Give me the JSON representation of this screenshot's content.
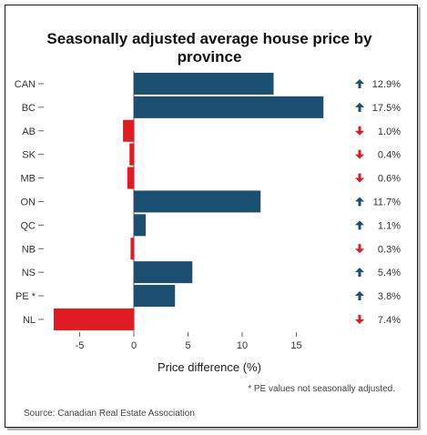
{
  "chart_data": {
    "type": "bar",
    "orientation": "horizontal",
    "title_line1": "Seasonally adjusted average house price by",
    "title_line2": "province",
    "categories": [
      "CAN",
      "BC",
      "AB",
      "SK",
      "MB",
      "ON",
      "QC",
      "NB",
      "NS",
      "PE *",
      "NL"
    ],
    "values": [
      12.9,
      17.5,
      -1.0,
      -0.4,
      -0.6,
      11.7,
      1.1,
      -0.3,
      5.4,
      3.8,
      -7.4
    ],
    "labels": [
      "12.9%",
      "17.5%",
      "1.0%",
      "0.4%",
      "0.6%",
      "11.7%",
      "1.1%",
      "0.3%",
      "5.4%",
      "3.8%",
      "7.4%"
    ],
    "xlabel": "Price difference (%)",
    "xlim": [
      -7.5,
      18
    ],
    "xticks": [
      -5,
      0,
      5,
      10,
      15
    ],
    "grid": false,
    "colors": {
      "positive": "#1b4f72",
      "negative": "#e01b24",
      "up_arrow": "#1b4f72",
      "down_arrow": "#e01b24"
    }
  },
  "footnote": "* PE values not seasonally adjusted.",
  "source": "Source: Canadian Real Estate Association"
}
